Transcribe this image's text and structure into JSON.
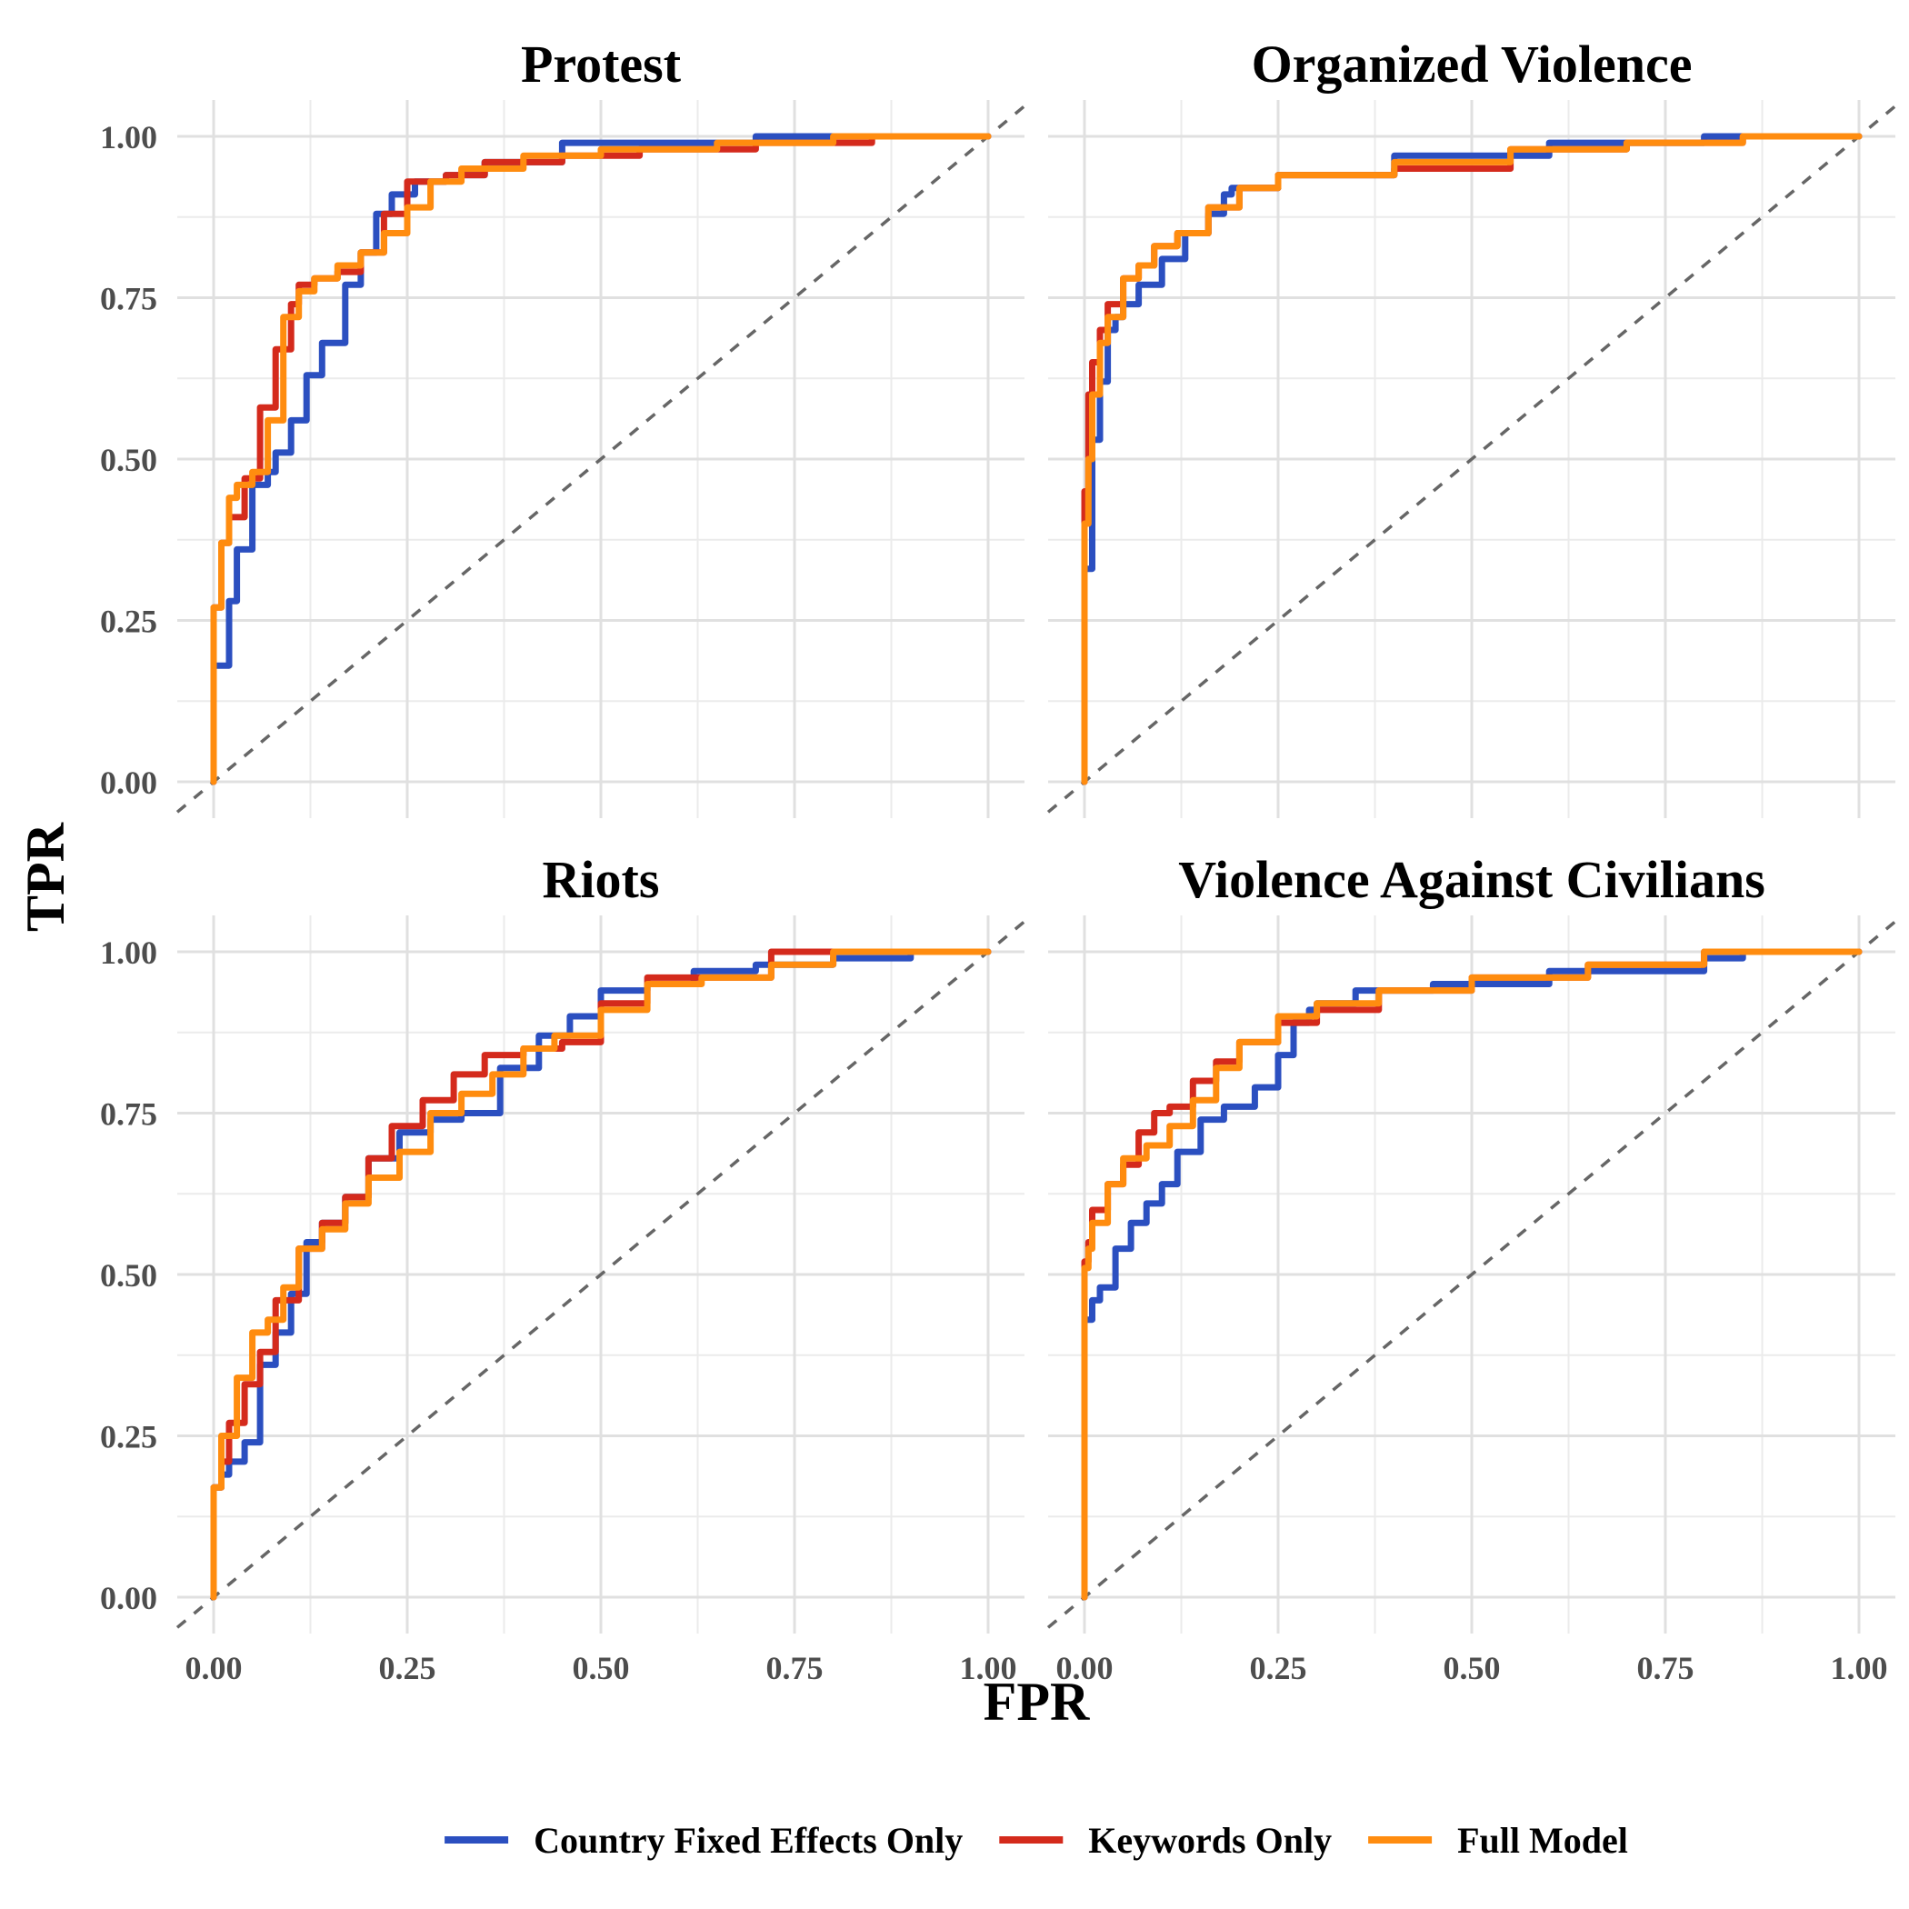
{
  "chart_data": {
    "type": "line",
    "xlabel": "FPR",
    "ylabel": "TPR",
    "xlim": [
      0,
      1
    ],
    "ylim": [
      0,
      1
    ],
    "grid": true,
    "reference_line": "diagonal dashed y = x",
    "x_ticks": [
      "0.00",
      "0.25",
      "0.50",
      "0.75",
      "1.00"
    ],
    "y_ticks": [
      "0.00",
      "0.25",
      "0.50",
      "0.75",
      "1.00"
    ],
    "legend_position": "bottom",
    "legend": [
      {
        "name": "Country Fixed Effects Only",
        "color": "#2b4fc0"
      },
      {
        "name": "Keywords Only",
        "color": "#d42a1c"
      },
      {
        "name": "Full Model",
        "color": "#ff8c0f"
      }
    ],
    "panels": [
      {
        "title": "Protest",
        "series": [
          {
            "name": "Country Fixed Effects Only",
            "x": [
              0,
              0,
              0.02,
              0.03,
              0.05,
              0.07,
              0.08,
              0.1,
              0.12,
              0.14,
              0.17,
              0.19,
              0.21,
              0.23,
              0.26,
              0.3,
              0.35,
              0.45,
              0.55,
              0.7,
              0.85,
              1.0
            ],
            "y": [
              0,
              0.12,
              0.18,
              0.28,
              0.36,
              0.46,
              0.48,
              0.51,
              0.56,
              0.63,
              0.68,
              0.77,
              0.82,
              0.88,
              0.91,
              0.93,
              0.94,
              0.96,
              0.99,
              0.99,
              1.0,
              1.0
            ]
          },
          {
            "name": "Keywords Only",
            "x": [
              0,
              0,
              0.01,
              0.02,
              0.04,
              0.06,
              0.08,
              0.1,
              0.11,
              0.13,
              0.16,
              0.19,
              0.22,
              0.25,
              0.3,
              0.35,
              0.45,
              0.55,
              0.7,
              0.85,
              1.0
            ],
            "y": [
              0,
              0.15,
              0.27,
              0.37,
              0.41,
              0.47,
              0.58,
              0.67,
              0.74,
              0.77,
              0.78,
              0.79,
              0.82,
              0.88,
              0.93,
              0.94,
              0.96,
              0.97,
              0.98,
              0.99,
              1.0
            ]
          },
          {
            "name": "Full Model",
            "x": [
              0,
              0,
              0.01,
              0.02,
              0.03,
              0.05,
              0.07,
              0.09,
              0.11,
              0.13,
              0.16,
              0.19,
              0.22,
              0.25,
              0.28,
              0.32,
              0.4,
              0.5,
              0.65,
              0.8,
              1.0
            ],
            "y": [
              0,
              0.15,
              0.27,
              0.37,
              0.44,
              0.46,
              0.48,
              0.56,
              0.72,
              0.76,
              0.78,
              0.8,
              0.82,
              0.85,
              0.89,
              0.93,
              0.95,
              0.97,
              0.98,
              0.99,
              1.0
            ]
          }
        ]
      },
      {
        "title": "Organized Violence",
        "series": [
          {
            "name": "Country Fixed Effects Only",
            "x": [
              0,
              0,
              0.01,
              0.02,
              0.03,
              0.04,
              0.05,
              0.07,
              0.1,
              0.13,
              0.16,
              0.18,
              0.19,
              0.25,
              0.4,
              0.6,
              0.8,
              1.0
            ],
            "y": [
              0,
              0.1,
              0.33,
              0.53,
              0.62,
              0.7,
              0.72,
              0.74,
              0.77,
              0.81,
              0.85,
              0.88,
              0.91,
              0.92,
              0.94,
              0.97,
              0.99,
              1.0
            ]
          },
          {
            "name": "Keywords Only",
            "x": [
              0,
              0,
              0.005,
              0.01,
              0.02,
              0.03,
              0.05,
              0.07,
              0.09,
              0.12,
              0.16,
              0.2,
              0.25,
              0.4,
              0.55,
              0.7,
              0.85,
              1.0
            ],
            "y": [
              0,
              0.2,
              0.45,
              0.6,
              0.65,
              0.7,
              0.74,
              0.78,
              0.8,
              0.83,
              0.85,
              0.89,
              0.92,
              0.94,
              0.95,
              0.98,
              0.99,
              1.0
            ]
          },
          {
            "name": "Full Model",
            "x": [
              0,
              0,
              0.005,
              0.01,
              0.02,
              0.03,
              0.05,
              0.07,
              0.09,
              0.12,
              0.16,
              0.2,
              0.25,
              0.4,
              0.55,
              0.7,
              0.85,
              1.0
            ],
            "y": [
              0,
              0.2,
              0.4,
              0.5,
              0.6,
              0.68,
              0.72,
              0.78,
              0.8,
              0.83,
              0.85,
              0.89,
              0.92,
              0.94,
              0.96,
              0.98,
              0.99,
              1.0
            ]
          }
        ]
      },
      {
        "title": "Riots",
        "series": [
          {
            "name": "Country Fixed Effects Only",
            "x": [
              0,
              0,
              0.01,
              0.02,
              0.04,
              0.06,
              0.08,
              0.1,
              0.12,
              0.14,
              0.17,
              0.2,
              0.24,
              0.28,
              0.32,
              0.37,
              0.42,
              0.46,
              0.5,
              0.56,
              0.62,
              0.7,
              0.8,
              0.9,
              1.0
            ],
            "y": [
              0,
              0.1,
              0.17,
              0.19,
              0.21,
              0.24,
              0.36,
              0.41,
              0.47,
              0.55,
              0.58,
              0.62,
              0.68,
              0.72,
              0.74,
              0.75,
              0.82,
              0.87,
              0.9,
              0.94,
              0.95,
              0.97,
              0.98,
              0.99,
              1.0
            ]
          },
          {
            "name": "Keywords Only",
            "x": [
              0,
              0,
              0.01,
              0.02,
              0.04,
              0.06,
              0.08,
              0.11,
              0.14,
              0.17,
              0.2,
              0.23,
              0.27,
              0.31,
              0.35,
              0.4,
              0.45,
              0.5,
              0.56,
              0.63,
              0.72,
              0.8,
              0.9,
              1.0
            ],
            "y": [
              0,
              0.12,
              0.17,
              0.21,
              0.27,
              0.33,
              0.38,
              0.46,
              0.54,
              0.58,
              0.62,
              0.68,
              0.73,
              0.77,
              0.81,
              0.84,
              0.85,
              0.86,
              0.92,
              0.96,
              0.96,
              1.0,
              1.0,
              1.0
            ]
          },
          {
            "name": "Full Model",
            "x": [
              0,
              0,
              0.01,
              0.03,
              0.05,
              0.07,
              0.09,
              0.11,
              0.14,
              0.17,
              0.2,
              0.24,
              0.28,
              0.32,
              0.36,
              0.4,
              0.44,
              0.5,
              0.56,
              0.63,
              0.72,
              0.8,
              0.9,
              1.0
            ],
            "y": [
              0,
              0.13,
              0.17,
              0.25,
              0.34,
              0.41,
              0.43,
              0.48,
              0.54,
              0.57,
              0.61,
              0.65,
              0.69,
              0.75,
              0.78,
              0.81,
              0.85,
              0.87,
              0.91,
              0.95,
              0.96,
              0.98,
              1.0,
              1.0
            ]
          }
        ]
      },
      {
        "title": "Violence Against Civilians",
        "series": [
          {
            "name": "Country Fixed Effects Only",
            "x": [
              0,
              0,
              0.01,
              0.02,
              0.04,
              0.06,
              0.08,
              0.1,
              0.12,
              0.15,
              0.18,
              0.22,
              0.25,
              0.27,
              0.29,
              0.3,
              0.35,
              0.45,
              0.6,
              0.8,
              0.85,
              1.0
            ],
            "y": [
              0,
              0.4,
              0.43,
              0.46,
              0.48,
              0.54,
              0.58,
              0.61,
              0.64,
              0.69,
              0.74,
              0.76,
              0.79,
              0.84,
              0.89,
              0.91,
              0.92,
              0.94,
              0.95,
              0.97,
              0.99,
              1.0
            ]
          },
          {
            "name": "Keywords Only",
            "x": [
              0,
              0,
              0.005,
              0.01,
              0.03,
              0.05,
              0.07,
              0.09,
              0.11,
              0.14,
              0.17,
              0.2,
              0.25,
              0.3,
              0.38,
              0.5,
              0.65,
              0.8,
              1.0
            ],
            "y": [
              0,
              0.46,
              0.52,
              0.55,
              0.6,
              0.64,
              0.67,
              0.72,
              0.75,
              0.76,
              0.8,
              0.83,
              0.86,
              0.89,
              0.91,
              0.94,
              0.96,
              0.98,
              1.0
            ]
          },
          {
            "name": "Full Model",
            "x": [
              0,
              0,
              0.005,
              0.01,
              0.03,
              0.05,
              0.08,
              0.11,
              0.14,
              0.17,
              0.2,
              0.25,
              0.3,
              0.38,
              0.5,
              0.65,
              0.8,
              1.0
            ],
            "y": [
              0,
              0.48,
              0.51,
              0.54,
              0.58,
              0.64,
              0.68,
              0.7,
              0.73,
              0.77,
              0.82,
              0.86,
              0.9,
              0.92,
              0.94,
              0.96,
              0.98,
              1.0
            ]
          }
        ]
      }
    ]
  }
}
